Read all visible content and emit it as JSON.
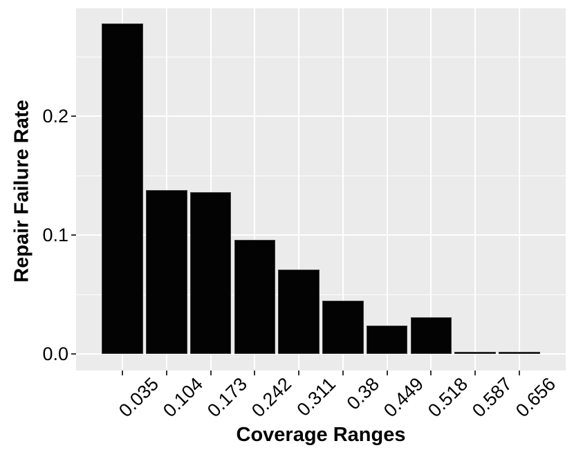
{
  "chart_data": {
    "type": "bar",
    "title": "",
    "xlabel": "Coverage Ranges",
    "ylabel": "Repair Failure Rate",
    "categories": [
      "0.035",
      "0.104",
      "0.173",
      "0.242",
      "0.311",
      "0.38",
      "0.449",
      "0.518",
      "0.587",
      "0.656"
    ],
    "values": [
      0.278,
      0.138,
      0.136,
      0.096,
      0.071,
      0.045,
      0.024,
      0.031,
      0.0015,
      0.0015
    ],
    "yticks": [
      0,
      0.1,
      0.2
    ],
    "ytick_labels": [
      "0.0",
      "0.1",
      "0.2"
    ],
    "minor_yticks": [
      0.05,
      0.15,
      0.25
    ],
    "ylim": [
      -0.014,
      0.291
    ],
    "legend": false,
    "grid": true,
    "bar_color": "#030303",
    "panel_background": "#EBEBEB",
    "gridline_color": "#FFFFFF",
    "text_color": "#000000",
    "x_tick_label_rotation_deg": 45
  }
}
